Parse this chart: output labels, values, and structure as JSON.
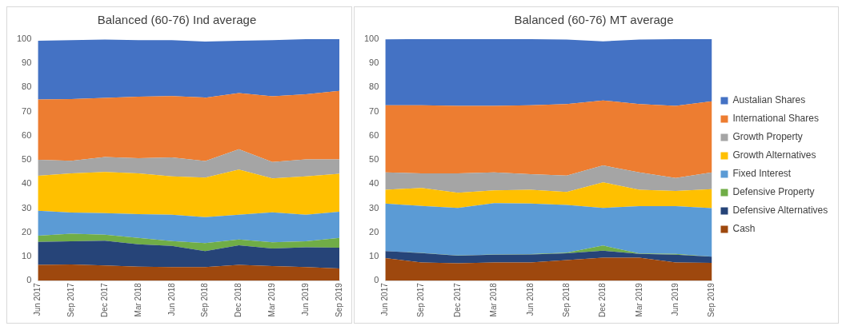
{
  "chart_data": [
    {
      "type": "area",
      "title": "Balanced (60-76) Ind average",
      "stacked": true,
      "grid": false,
      "legend": false,
      "categories": [
        "Jun 2017",
        "Sep 2017",
        "Dec 2017",
        "Mar 2018",
        "Jun 2018",
        "Sep 2018",
        "Dec 2018",
        "Mar 2019",
        "Jun 2019",
        "Sep 2019"
      ],
      "ylim": [
        0,
        100
      ],
      "yticks": [
        0,
        10,
        20,
        30,
        40,
        50,
        60,
        70,
        80,
        90,
        100
      ],
      "series": [
        {
          "color": "#9e480e",
          "values": [
            6.5,
            6.7,
            6.3,
            5.8,
            5.6,
            5.6,
            6.5,
            6.0,
            5.6,
            5.0
          ]
        },
        {
          "color": "#264478",
          "values": [
            9.5,
            9.6,
            10.2,
            9.2,
            8.8,
            6.6,
            8.1,
            7.3,
            8.2,
            8.6
          ]
        },
        {
          "color": "#70ad47",
          "values": [
            2.6,
            3.1,
            2.5,
            2.7,
            2.0,
            3.3,
            2.4,
            2.6,
            2.5,
            4.1
          ]
        },
        {
          "color": "#5b9bd5",
          "values": [
            10.3,
            8.8,
            8.9,
            9.8,
            10.9,
            10.8,
            10.3,
            12.4,
            11.0,
            10.8
          ]
        },
        {
          "color": "#ffc000",
          "values": [
            14.5,
            16.2,
            17.1,
            16.9,
            15.9,
            16.4,
            18.7,
            14.0,
            15.9,
            15.7
          ]
        },
        {
          "color": "#a5a5a5",
          "values": [
            6.6,
            5.2,
            6.2,
            6.3,
            7.8,
            6.8,
            8.4,
            6.8,
            7.0,
            6.0
          ]
        },
        {
          "color": "#ed7d31",
          "values": [
            25.0,
            25.6,
            24.5,
            25.5,
            25.4,
            26.3,
            23.3,
            27.2,
            27.0,
            28.4
          ]
        },
        {
          "color": "#4472c4",
          "values": [
            24.3,
            24.4,
            24.1,
            23.4,
            23.2,
            23.2,
            21.6,
            23.3,
            22.8,
            21.4
          ]
        }
      ]
    },
    {
      "type": "area",
      "title": "Balanced (60-76) MT average",
      "stacked": true,
      "grid": false,
      "legend": "right",
      "categories": [
        "Jun 2017",
        "Sep 2017",
        "Dec 2017",
        "Mar 2018",
        "Jun 2018",
        "Sep 2018",
        "Dec 2018",
        "Mar 2019",
        "Jun 2019",
        "Sep 2019"
      ],
      "ylim": [
        0,
        100
      ],
      "yticks": [
        0,
        10,
        20,
        30,
        40,
        50,
        60,
        70,
        80,
        90,
        100
      ],
      "series": [
        {
          "name": "Cash",
          "color": "#9e480e",
          "values": [
            9.3,
            7.5,
            7.2,
            7.5,
            7.5,
            8.5,
            9.5,
            9.5,
            7.5,
            7.3
          ]
        },
        {
          "name": "Defensive Alternatives",
          "color": "#264478",
          "values": [
            2.9,
            3.9,
            3.1,
            3.2,
            3.3,
            2.8,
            2.9,
            1.6,
            3.2,
            2.6
          ]
        },
        {
          "name": "Defensive Property",
          "color": "#70ad47",
          "values": [
            0,
            0.1,
            0.1,
            0.1,
            0.2,
            0.3,
            2.1,
            0.1,
            0.4,
            0
          ]
        },
        {
          "name": "Fixed Interest",
          "color": "#5b9bd5",
          "values": [
            19.7,
            19.4,
            19.7,
            21.3,
            20.9,
            19.7,
            15.6,
            19.6,
            19.7,
            20.1
          ]
        },
        {
          "name": "Growth Alternatives",
          "color": "#ffc000",
          "values": [
            5.7,
            7.5,
            6.3,
            5.3,
            5.7,
            5.4,
            10.6,
            6.8,
            6.3,
            7.9
          ]
        },
        {
          "name": "Growth Property",
          "color": "#a5a5a5",
          "values": [
            7.2,
            6.0,
            8.0,
            7.4,
            6.5,
            6.8,
            7.0,
            7.2,
            5.4,
            6.9
          ]
        },
        {
          "name": "International Shares",
          "color": "#ed7d31",
          "values": [
            27.8,
            28.2,
            28.0,
            27.6,
            28.5,
            29.6,
            26.9,
            28.3,
            29.9,
            29.5
          ]
        },
        {
          "name": "Austalian Shares",
          "color": "#4472c4",
          "values": [
            27.3,
            27.4,
            27.6,
            27.6,
            27.4,
            26.7,
            24.5,
            26.7,
            27.6,
            25.7
          ]
        }
      ]
    }
  ]
}
